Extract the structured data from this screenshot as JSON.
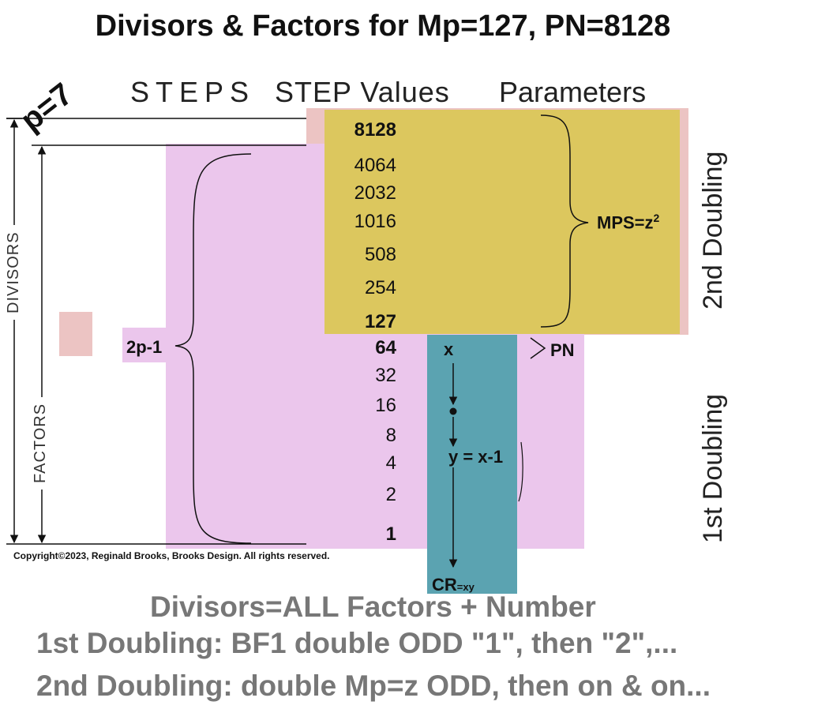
{
  "title": "Divisors & Factors for Mp=127, PN=8128",
  "p_label": "p=7",
  "headers": {
    "steps": "STEPS",
    "step_values": "STEP Values",
    "parameters": "Parameters"
  },
  "values": [
    "8128",
    "4064",
    "2032",
    "1016",
    "508",
    "254",
    "127",
    "64",
    "32",
    "16",
    "8",
    "4",
    "2",
    "1"
  ],
  "labels": {
    "mps": "MPS=z",
    "mps_exp": "2",
    "pn": "PN",
    "two_p_minus_1": "2p-1",
    "x": "x",
    "y": "y = x-1",
    "cr": "CR",
    "cr_sub": "=xy",
    "divisors": "DIVISORS",
    "factors": "FACTORS",
    "second_doubling": "2nd Doubling",
    "first_doubling": "1st Doubling"
  },
  "copyright": "Copyright©2023, Reginald Brooks, Brooks Design. All rights reserved.",
  "footer": {
    "line1": "Divisors=ALL Factors + Number",
    "line2": "1st Doubling: BF1 double ODD \"1\", then \"2\",...",
    "line3": "2nd Doubling: double Mp=z ODD, then on & on..."
  },
  "colors": {
    "pink": "#ebc6ec",
    "salmon": "#ecc4c3",
    "gold": "#dcc75e",
    "teal": "#5ba3b1",
    "footer": "#777777"
  }
}
